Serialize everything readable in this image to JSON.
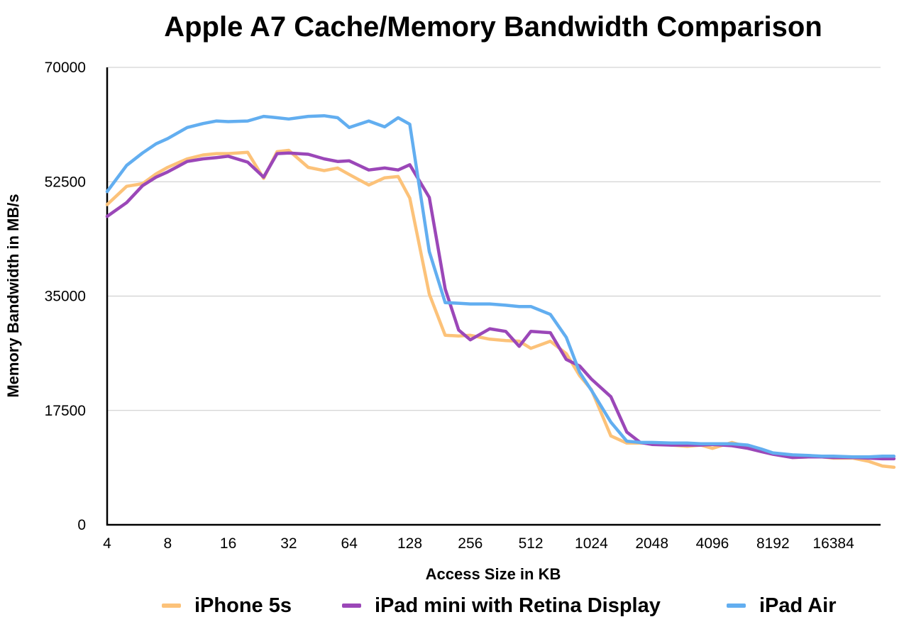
{
  "chart_data": {
    "type": "line",
    "title": "Apple A7 Cache/Memory Bandwidth Comparison",
    "xlabel": "Access Size in KB",
    "ylabel": "Memory Bandwidth in MB/s",
    "x_scale": "log2",
    "x_tick_labels": [
      "4",
      "8",
      "16",
      "32",
      "64",
      "128",
      "256",
      "512",
      "1024",
      "2048",
      "4096",
      "8192",
      "16384"
    ],
    "y_ticks": [
      0,
      17500,
      35000,
      52500,
      70000
    ],
    "ylim": [
      0,
      70000
    ],
    "grid": "horizontal",
    "legend_position": "bottom",
    "x": [
      4,
      5,
      6,
      7,
      8,
      10,
      12,
      14,
      16,
      20,
      24,
      28,
      32,
      40,
      48,
      56,
      64,
      80,
      96,
      112,
      128,
      160,
      192,
      224,
      256,
      320,
      384,
      448,
      512,
      640,
      768,
      896,
      1024,
      1280,
      1536,
      1792,
      2048,
      2560,
      3072,
      3584,
      4096,
      5120,
      6144,
      7168,
      8192,
      10240,
      12288,
      14336,
      16384,
      20480,
      24576,
      28672,
      32768
    ],
    "series": [
      {
        "name": "iPhone 5s",
        "color": "#fcc279",
        "values": [
          49000,
          51800,
          52200,
          53700,
          54700,
          56000,
          56600,
          56800,
          56800,
          57000,
          53000,
          57100,
          57300,
          54700,
          54200,
          54600,
          53600,
          52000,
          53100,
          53300,
          50000,
          35300,
          29000,
          28900,
          29000,
          28400,
          28200,
          28100,
          27000,
          28100,
          26200,
          22800,
          20700,
          13600,
          12500,
          12500,
          12500,
          12200,
          12000,
          12200,
          11700,
          12600,
          11900,
          11300,
          10900,
          10300,
          10400,
          10400,
          10200,
          10200,
          9700,
          9000,
          8800
        ]
      },
      {
        "name": "iPad mini with Retina Display",
        "color": "#9b47b8",
        "values": [
          47200,
          49300,
          51900,
          53200,
          54000,
          55600,
          56000,
          56200,
          56400,
          55500,
          53200,
          56800,
          56900,
          56700,
          56000,
          55600,
          55700,
          54300,
          54600,
          54300,
          55100,
          50100,
          36100,
          29800,
          28300,
          30000,
          29600,
          27300,
          29600,
          29400,
          25300,
          24300,
          22300,
          19600,
          14200,
          12600,
          12300,
          12200,
          12200,
          12200,
          12300,
          12100,
          11700,
          11200,
          10800,
          10300,
          10400,
          10400,
          10300,
          10300,
          10200,
          10100,
          10100
        ]
      },
      {
        "name": "iPad Air",
        "color": "#62aef0",
        "values": [
          51000,
          55000,
          56900,
          58300,
          59100,
          60800,
          61400,
          61800,
          61700,
          61800,
          62500,
          62300,
          62100,
          62500,
          62600,
          62300,
          60800,
          61800,
          60900,
          62300,
          61300,
          41800,
          34000,
          33900,
          33800,
          33800,
          33600,
          33400,
          33400,
          32200,
          28700,
          23300,
          20600,
          15700,
          12800,
          12600,
          12600,
          12500,
          12500,
          12400,
          12400,
          12400,
          12200,
          11600,
          11000,
          10700,
          10600,
          10500,
          10500,
          10400,
          10400,
          10500,
          10500
        ]
      }
    ]
  }
}
